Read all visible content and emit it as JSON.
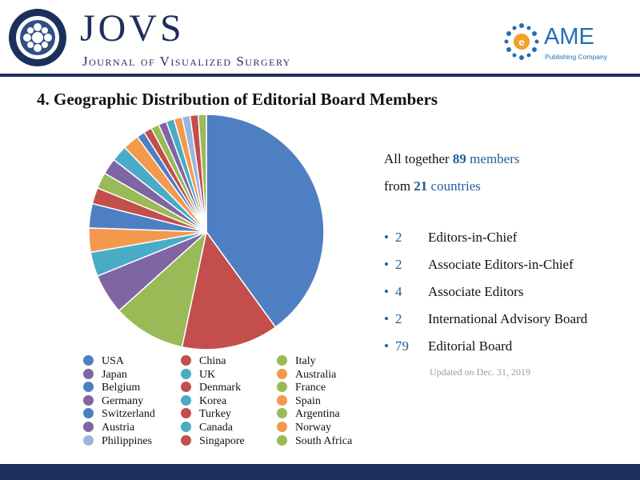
{
  "header": {
    "journal_acronym": "JOVS",
    "journal_name": "Journal of Visualized Surgery",
    "seal_text": "JOURNAL OF VISUALIZED SURGERY",
    "publisher_name": "AME",
    "publisher_sub": "Publishing Company",
    "brand_color": "#1d2f5c",
    "publisher_color": "#1f6fb6"
  },
  "title": "4. Geographic Distribution of Editorial Board Members",
  "summary": {
    "line1_prefix": "All together",
    "total_members": "89",
    "line1_suffix": "members",
    "line2_prefix": "from",
    "total_countries": "21",
    "line2_suffix": "countries"
  },
  "roles": [
    {
      "count": "2",
      "label": "Editors-in-Chief"
    },
    {
      "count": "2",
      "label": "Associate Editors-in-Chief"
    },
    {
      "count": "4",
      "label": "Associate Editors"
    },
    {
      "count": "2",
      "label": "International Advisory Board"
    },
    {
      "count": "79",
      "label": "Editorial Board"
    }
  ],
  "updated": "Updated on Dec. 31, 2019",
  "chart_data": {
    "type": "pie",
    "title": "",
    "legend_position": "bottom",
    "categories": [
      "USA",
      "China",
      "Italy",
      "Japan",
      "UK",
      "Australia",
      "Belgium",
      "Denmark",
      "France",
      "Germany",
      "Korea",
      "Spain",
      "Switzerland",
      "Turkey",
      "Argentina",
      "Austria",
      "Canada",
      "Norway",
      "Philippines",
      "Singapore",
      "South Africa"
    ],
    "values": [
      36,
      12,
      9,
      5,
      3,
      3,
      3,
      2,
      2,
      2,
      2,
      2,
      1,
      1,
      1,
      1,
      1,
      1,
      1,
      1,
      1
    ],
    "colors": [
      "#4f7fc3",
      "#c34e4c",
      "#9aba57",
      "#8065a5",
      "#4aabc6",
      "#f3994d",
      "#4f7fc3",
      "#c34e4c",
      "#9aba57",
      "#8065a5",
      "#4aabc6",
      "#f3994d",
      "#4f7fc3",
      "#c34e4c",
      "#9aba57",
      "#8065a5",
      "#4aabc6",
      "#f3994d",
      "#9ab5de",
      "#c34e4c",
      "#9aba57"
    ]
  }
}
